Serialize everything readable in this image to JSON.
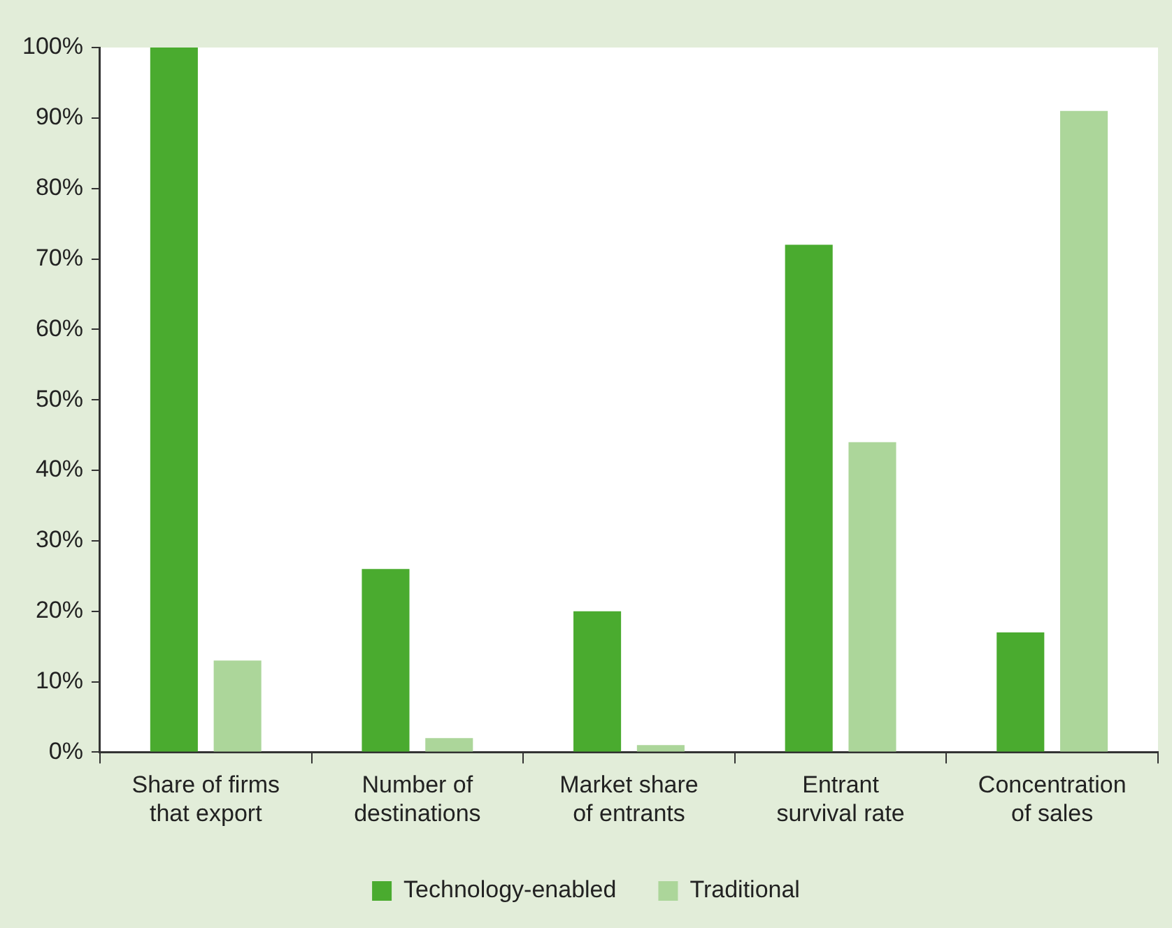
{
  "chart_data": {
    "type": "bar",
    "categories": [
      "Share of firms that export",
      "Number of destinations",
      "Market share of entrants",
      "Entrant survival rate",
      "Concentration of sales"
    ],
    "series": [
      {
        "name": "Technology-enabled",
        "color": "#4aab2f",
        "values": [
          100,
          26,
          20,
          72,
          17
        ]
      },
      {
        "name": "Traditional",
        "color": "#acd69a",
        "values": [
          13,
          2,
          1,
          44,
          91
        ]
      }
    ],
    "ylim": [
      0,
      100
    ],
    "yticks": [
      {
        "value": 0,
        "label": "0%"
      },
      {
        "value": 10,
        "label": "10%"
      },
      {
        "value": 20,
        "label": "20%"
      },
      {
        "value": 30,
        "label": "30%"
      },
      {
        "value": 40,
        "label": "40%"
      },
      {
        "value": 50,
        "label": "50%"
      },
      {
        "value": 60,
        "label": "60%"
      },
      {
        "value": 70,
        "label": "70%"
      },
      {
        "value": 80,
        "label": "80%"
      },
      {
        "value": 90,
        "label": "90%"
      },
      {
        "value": 100,
        "label": "100%"
      }
    ],
    "legend": "bottom"
  }
}
